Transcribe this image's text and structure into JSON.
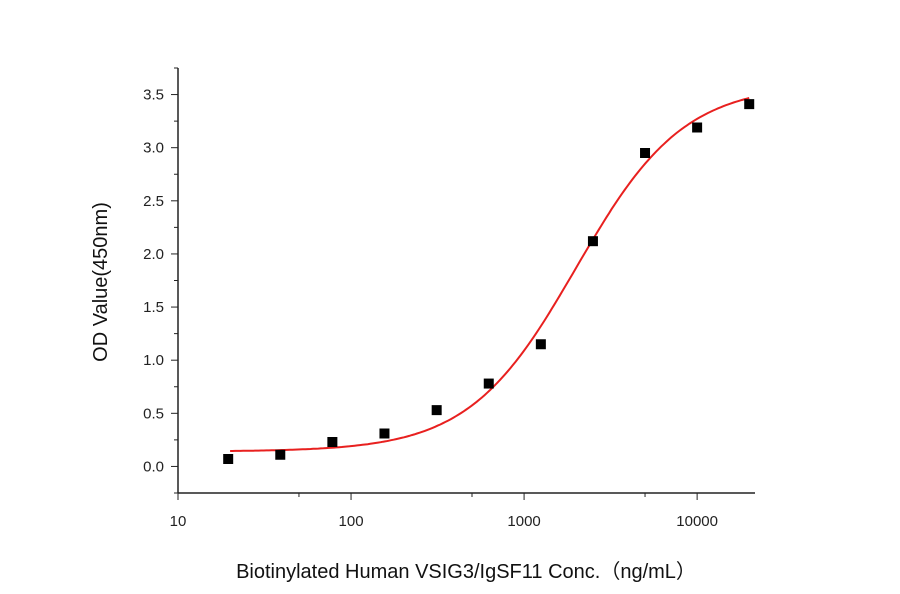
{
  "chart_data": {
    "type": "scatter",
    "title": "",
    "xlabel": "Biotinylated Human VSIG3/IgSF11 Conc.（ng/mL）",
    "ylabel": "OD Value(450nm)",
    "x_scale": "log",
    "xlim": [
      10,
      21600
    ],
    "ylim": [
      -0.25,
      3.75
    ],
    "x_ticks": [
      "10",
      "100",
      "1000",
      "10000"
    ],
    "y_ticks": [
      "0.0",
      "0.5",
      "1.0",
      "1.5",
      "2.0",
      "2.5",
      "3.0",
      "3.5"
    ],
    "grid": false,
    "legend": "none",
    "points": {
      "x": [
        19.5,
        39,
        78,
        156,
        312.5,
        625,
        1250,
        2500,
        5000,
        10000,
        20000
      ],
      "y": [
        0.07,
        0.11,
        0.23,
        0.31,
        0.53,
        0.78,
        1.15,
        2.12,
        2.95,
        3.19,
        3.41
      ],
      "color": "#000000",
      "marker": "square"
    },
    "fit": {
      "type": "4PL",
      "bottom": 0.14,
      "top": 3.6,
      "ec50": 2000,
      "hill": 1.4,
      "x_range": [
        20,
        20000
      ],
      "color": "#e8201f"
    }
  }
}
